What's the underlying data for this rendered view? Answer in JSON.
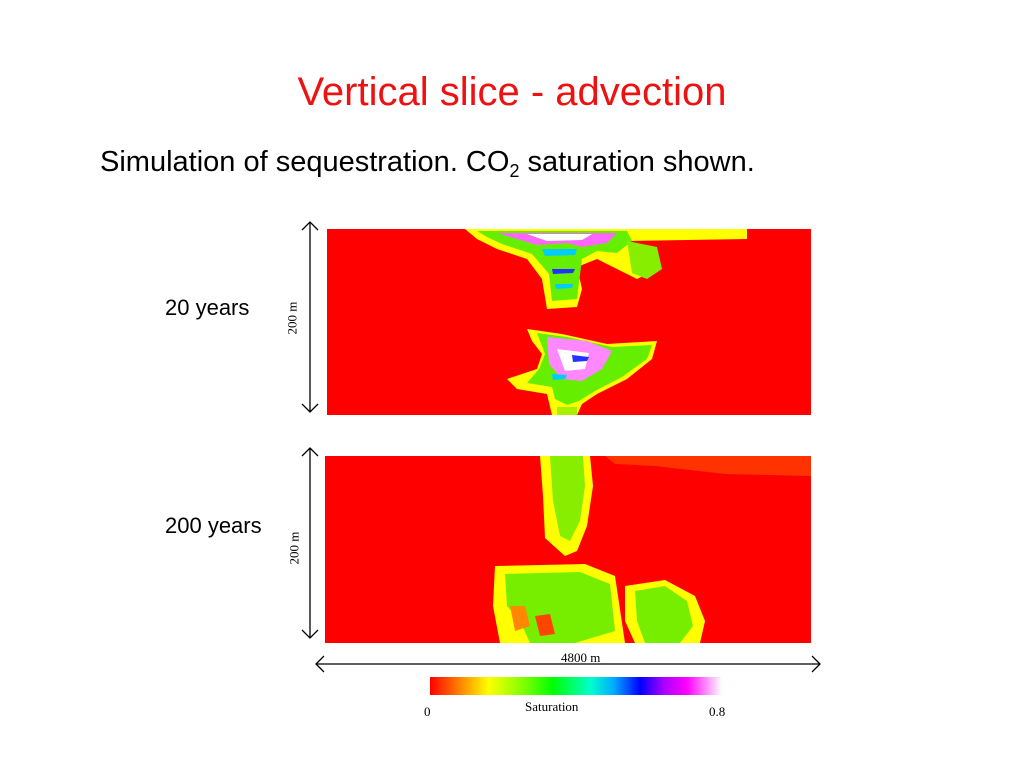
{
  "title": "Vertical slice - advection",
  "subtitle": {
    "prefix": "Simulation of sequestration.   CO",
    "subscript": "2",
    "suffix": " saturation shown."
  },
  "panels": [
    {
      "label": "20 years",
      "scale": "200 m"
    },
    {
      "label": "200 years",
      "scale": "200 m"
    }
  ],
  "width_scale": "4800 m",
  "colorbar": {
    "label": "Saturation",
    "min": "0",
    "max": "0.8",
    "colors": [
      "#ff0000",
      "#ff8000",
      "#ffff00",
      "#80ff00",
      "#00ff00",
      "#00ffcc",
      "#00aaff",
      "#0000ff",
      "#aa00ff",
      "#ff00ff",
      "#ffffff"
    ]
  }
}
